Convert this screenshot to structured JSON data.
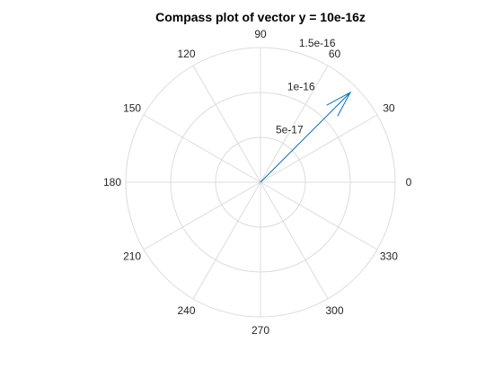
{
  "chart_data": {
    "type": "compass",
    "title": "Compass plot of vector y = 10e-16z",
    "angle_ticks": [
      0,
      30,
      60,
      90,
      120,
      150,
      180,
      210,
      240,
      270,
      300,
      330
    ],
    "angle_tick_labels": [
      "0",
      "30",
      "60",
      "90",
      "120",
      "150",
      "180",
      "210",
      "240",
      "270",
      "300",
      "330"
    ],
    "radius_ticks": [
      5e-17,
      1e-16,
      1.5e-16
    ],
    "radius_tick_labels": [
      "5e-17",
      "1e-16",
      "1.5e-16"
    ],
    "rlim": [
      0,
      1.5e-16
    ],
    "grid": true,
    "series": [
      {
        "vectors": [
          {
            "angle_deg": 45,
            "magnitude": 1.414e-16
          }
        ],
        "color": "#0072BD"
      }
    ],
    "grid_color": "#dcdcdc"
  }
}
